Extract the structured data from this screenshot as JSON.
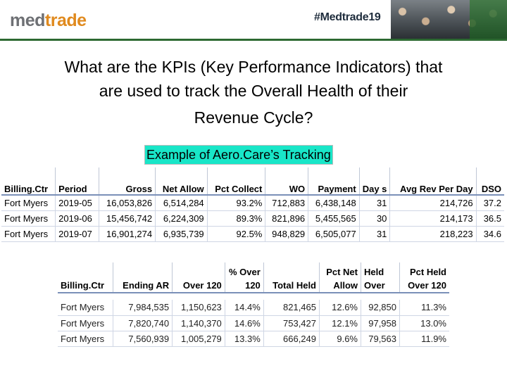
{
  "header": {
    "logo_part1": "med",
    "logo_part2": "trade",
    "hashtag": "#Medtrade19"
  },
  "question": {
    "line1": "What are the KPIs (Key Performance Indicators) that",
    "line2": "are used to track the Overall Health of their",
    "line3": "Revenue Cycle?"
  },
  "caption": "Example of Aero.Care’s Tracking",
  "table1": {
    "headers": [
      "Billing.Ctr",
      "Period",
      "Gross",
      "Net Allow",
      "Pct Collect",
      "WO",
      "Payment",
      "Day s",
      "Avg Rev Per Day",
      "DSO"
    ],
    "rows": [
      [
        "Fort Myers",
        "2019-05",
        "16,053,826",
        "6,514,284",
        "93.2%",
        "712,883",
        "6,438,148",
        "31",
        "214,726",
        "37.2"
      ],
      [
        "Fort Myers",
        "2019-06",
        "15,456,742",
        "6,224,309",
        "89.3%",
        "821,896",
        "5,455,565",
        "30",
        "214,173",
        "36.5"
      ],
      [
        "Fort Myers",
        "2019-07",
        "16,901,274",
        "6,935,739",
        "92.5%",
        "948,829",
        "6,505,077",
        "31",
        "218,223",
        "34.6"
      ]
    ]
  },
  "table2": {
    "headers": [
      "Billing.Ctr",
      "Ending AR",
      "Over 120",
      "% Over 120",
      "Total Held",
      "Pct Net Allow",
      "Held Over",
      "Pct Held Over 120"
    ],
    "rows": [
      [
        "Fort Myers",
        "7,984,535",
        "1,150,623",
        "14.4%",
        "821,465",
        "12.6%",
        "92,850",
        "11.3%"
      ],
      [
        "Fort Myers",
        "7,820,740",
        "1,140,370",
        "14.6%",
        "753,427",
        "12.1%",
        "97,958",
        "13.0%"
      ],
      [
        "Fort Myers",
        "7,560,939",
        "1,005,279",
        "13.3%",
        "666,249",
        "9.6%",
        "79,563",
        "11.9%"
      ]
    ]
  }
}
